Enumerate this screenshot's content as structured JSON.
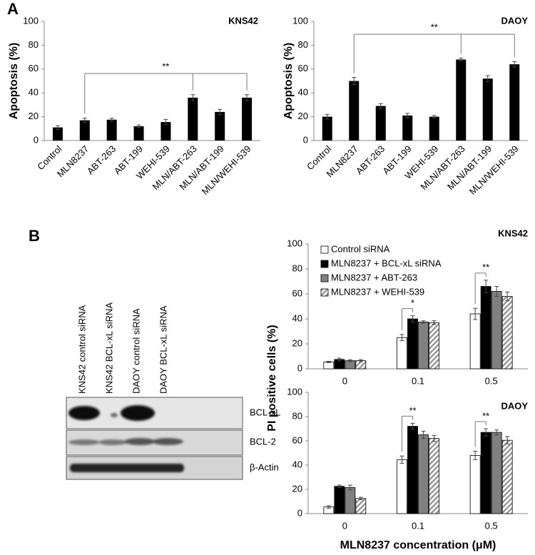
{
  "panel_labels": [
    "A",
    "B"
  ],
  "blot": {
    "lanes": [
      "KNS42 control siRNA",
      "KNS42 BCL-xL siRNA",
      "DAOY control siRNA",
      "DAOY BCL-xL siRNA"
    ],
    "bands": [
      "BCL-xL",
      "BCL-2",
      "β-Actin"
    ]
  },
  "chart_data": [
    {
      "type": "bar",
      "title": "KNS42",
      "ylabel": "Apoptosis (%)",
      "categories": [
        "Control",
        "MLN8237",
        "ABT-263",
        "ABT-199",
        "WEHI-539",
        "MLN/ABT-263",
        "MLN/ABT-199",
        "MLN/WEHI-539"
      ],
      "values": [
        11,
        17,
        17.5,
        12,
        15.5,
        36,
        24,
        36
      ],
      "errors": [
        1.5,
        1.8,
        1.2,
        1,
        2.2,
        2.5,
        2.2,
        2.5
      ],
      "color": "#000000",
      "ylim": [
        0,
        100
      ],
      "yticks": [
        0,
        20,
        40,
        60,
        80,
        100
      ],
      "annotations": [
        "**"
      ]
    },
    {
      "type": "bar",
      "title": "DAOY",
      "ylabel": "Apoptosis (%)",
      "categories": [
        "Control",
        "MLN8237",
        "ABT-263",
        "ABT-199",
        "WEHI-539",
        "MLN/ABT-263",
        "MLN/ABT-199",
        "MLN/WEHI-539"
      ],
      "values": [
        20,
        50,
        29,
        21,
        20,
        68,
        52,
        64
      ],
      "errors": [
        2,
        3,
        2,
        1.8,
        1,
        1.2,
        2.5,
        2.2
      ],
      "color": "#000000",
      "ylim": [
        0,
        100
      ],
      "yticks": [
        0,
        20,
        40,
        60,
        80,
        100
      ],
      "annotations": [
        "**"
      ]
    },
    {
      "type": "grouped_bar",
      "title": "KNS42",
      "ylabel": "PI positive cells (%)",
      "categories": [
        "0",
        "0.1",
        "0.5"
      ],
      "series": [
        {
          "name": "Control siRNA",
          "color": "#ffffff",
          "values": [
            5.5,
            25,
            44
          ],
          "errors": [
            0.5,
            2.5,
            4.5
          ]
        },
        {
          "name": "MLN8237 + BCL-xL siRNA",
          "color": "#000000",
          "values": [
            7.5,
            40,
            66
          ],
          "errors": [
            1,
            2.5,
            5
          ]
        },
        {
          "name": "MLN8237 + ABT-263",
          "color": "#808080",
          "values": [
            6.5,
            37.5,
            62
          ],
          "errors": [
            0.8,
            1,
            4
          ]
        },
        {
          "name": "MLN8237 + WEHI-539",
          "color": "#808080",
          "pattern": "hatch",
          "values": [
            6.5,
            37,
            58
          ],
          "errors": [
            0.8,
            1.5,
            3.5
          ]
        }
      ],
      "ylim": [
        0,
        100
      ],
      "yticks": [
        0,
        20,
        40,
        60,
        80,
        100
      ],
      "legend": "top-left",
      "annotations": [
        "*",
        "**"
      ]
    },
    {
      "type": "grouped_bar",
      "title": "DAOY",
      "xlabel": "MLN8237 concentration (μM)",
      "categories": [
        "0",
        "0.1",
        "0.5"
      ],
      "series": [
        {
          "name": "Control siRNA",
          "color": "#ffffff",
          "values": [
            5.5,
            44.5,
            48
          ],
          "errors": [
            1,
            3,
            3.5
          ]
        },
        {
          "name": "MLN8237 + BCL-xL siRNA",
          "color": "#000000",
          "values": [
            22.5,
            72,
            67
          ],
          "errors": [
            1,
            2.5,
            3
          ]
        },
        {
          "name": "MLN8237 + ABT-263",
          "color": "#808080",
          "values": [
            21.5,
            65,
            67
          ],
          "errors": [
            2,
            3,
            2
          ]
        },
        {
          "name": "MLN8237 + WEHI-539",
          "color": "#808080",
          "pattern": "hatch",
          "values": [
            12.5,
            62,
            60.5
          ],
          "errors": [
            1,
            2.5,
            3
          ]
        }
      ],
      "ylim": [
        0,
        100
      ],
      "yticks": [
        0,
        20,
        40,
        60,
        80,
        100
      ],
      "annotations": [
        "**",
        "**"
      ]
    }
  ]
}
